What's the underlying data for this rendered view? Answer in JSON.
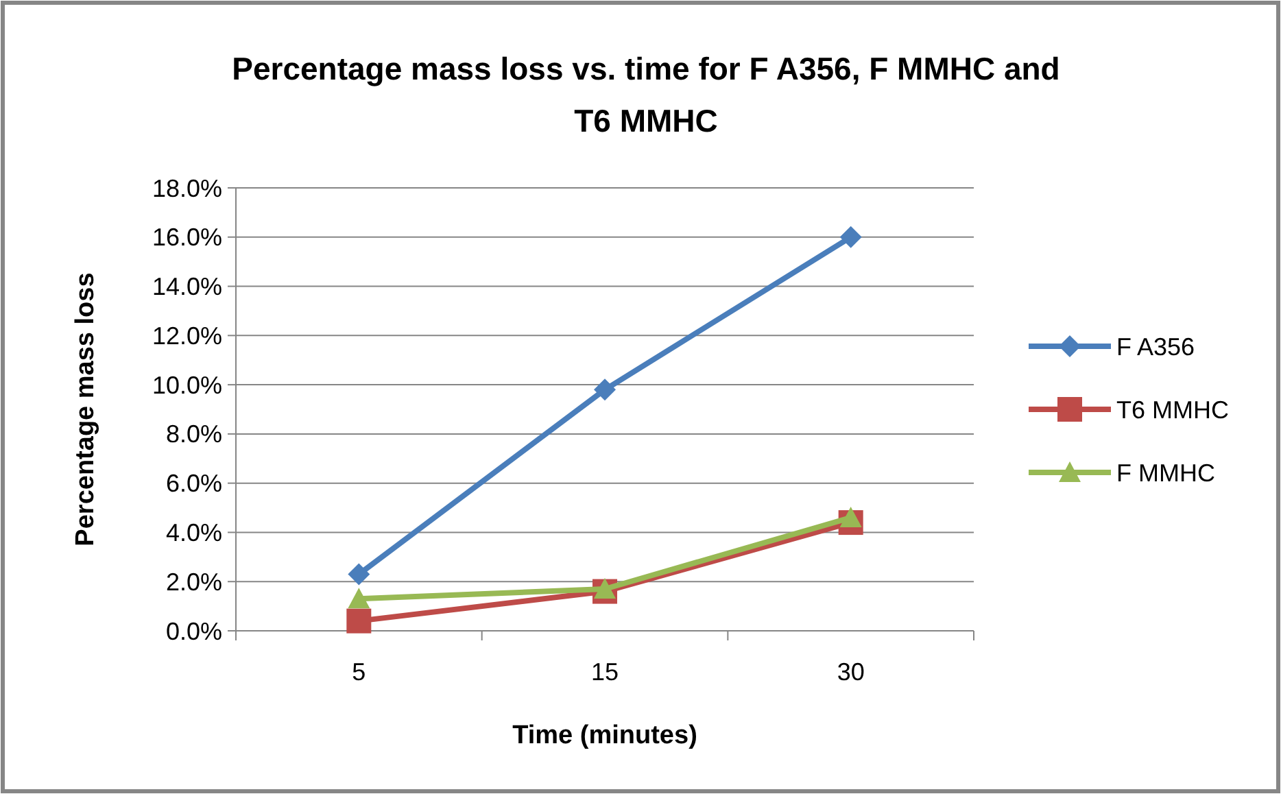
{
  "chart_data": {
    "type": "line",
    "title": "Percentage mass loss vs. time for F A356, F MMHC and T6 MMHC",
    "xlabel": "Time (minutes)",
    "ylabel": "Percentage mass loss",
    "categories": [
      "5",
      "15",
      "30"
    ],
    "series": [
      {
        "name": "F A356",
        "color": "#4a7ebb",
        "marker": "diamond",
        "values": [
          2.3,
          9.8,
          16.0
        ]
      },
      {
        "name": "T6 MMHC",
        "color": "#be4b48",
        "marker": "square",
        "values": [
          0.4,
          1.6,
          4.4
        ]
      },
      {
        "name": "F MMHC",
        "color": "#98b954",
        "marker": "triangle",
        "values": [
          1.3,
          1.7,
          4.6
        ]
      }
    ],
    "ylim": [
      0,
      18
    ],
    "yticks": [
      {
        "value": 0,
        "label": "0.0%"
      },
      {
        "value": 2,
        "label": "2.0%"
      },
      {
        "value": 4,
        "label": "4.0%"
      },
      {
        "value": 6,
        "label": "6.0%"
      },
      {
        "value": 8,
        "label": "8.0%"
      },
      {
        "value": 10,
        "label": "10.0%"
      },
      {
        "value": 12,
        "label": "12.0%"
      },
      {
        "value": 14,
        "label": "14.0%"
      },
      {
        "value": 16,
        "label": "16.0%"
      },
      {
        "value": 18,
        "label": "18.0%"
      }
    ],
    "grid": "y",
    "legend": "right",
    "line_style": "solid"
  }
}
